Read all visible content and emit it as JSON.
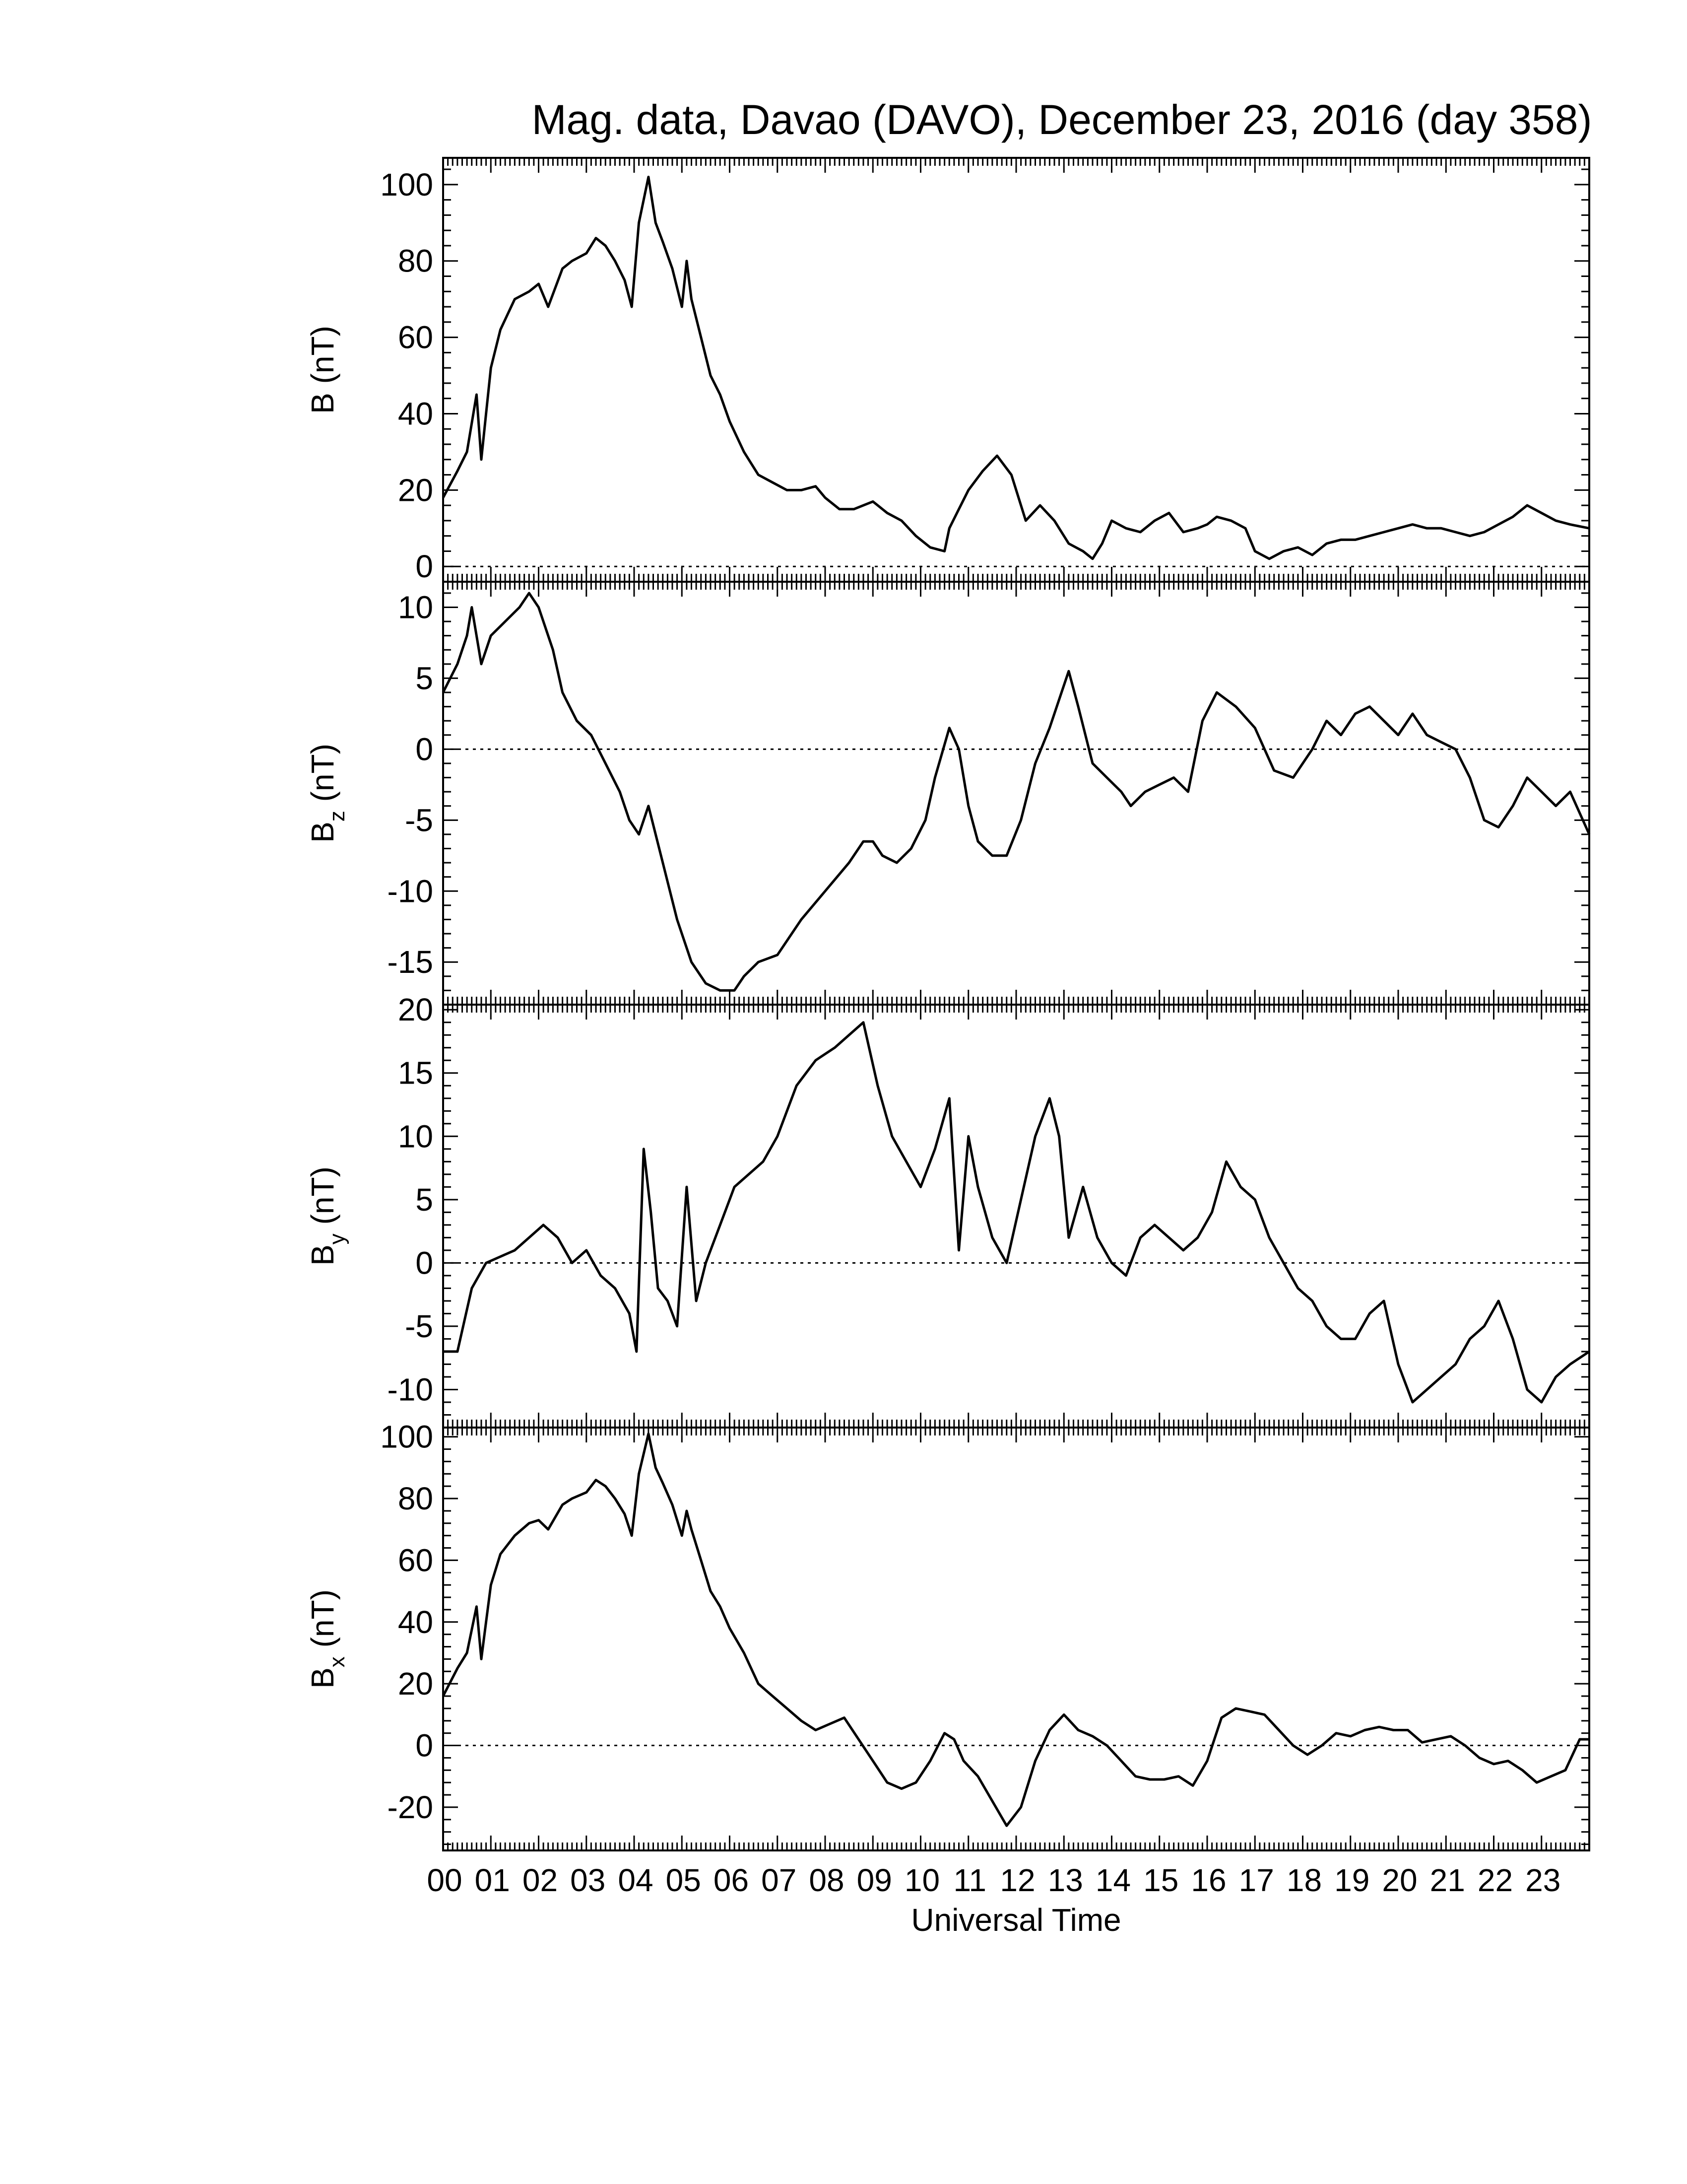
{
  "title": "Mag. data, Davao (DAVO), December 23, 2016 (day 358)",
  "chart_data": [
    {
      "type": "line",
      "panel": "B",
      "ylabel": "B (nT)",
      "ylabel_main": "B",
      "ylabel_sub": "",
      "ylabel_unit": " (nT)",
      "ylim": [
        -4,
        107
      ],
      "yticks": [
        0,
        20,
        40,
        60,
        80,
        100
      ],
      "zero_line": true,
      "x": [
        0,
        0.3,
        0.5,
        0.7,
        0.8,
        0.9,
        1.0,
        1.2,
        1.5,
        1.8,
        2.0,
        2.2,
        2.5,
        2.7,
        3.0,
        3.2,
        3.4,
        3.6,
        3.8,
        3.95,
        4.1,
        4.3,
        4.45,
        4.6,
        4.8,
        5.0,
        5.1,
        5.2,
        5.4,
        5.6,
        5.8,
        6.0,
        6.3,
        6.6,
        6.9,
        7.2,
        7.5,
        7.8,
        8.0,
        8.3,
        8.6,
        9.0,
        9.3,
        9.6,
        9.9,
        10.2,
        10.5,
        10.6,
        10.8,
        11.0,
        11.3,
        11.6,
        11.9,
        12.2,
        12.5,
        12.8,
        13.1,
        13.4,
        13.6,
        13.8,
        14.0,
        14.3,
        14.6,
        14.9,
        15.2,
        15.5,
        15.8,
        16.0,
        16.2,
        16.5,
        16.8,
        17.0,
        17.3,
        17.6,
        17.9,
        18.2,
        18.5,
        18.8,
        19.1,
        19.4,
        19.7,
        20.0,
        20.3,
        20.6,
        20.9,
        21.2,
        21.5,
        21.8,
        22.1,
        22.4,
        22.7,
        23.0,
        23.3,
        23.6,
        24.0
      ],
      "series": [
        {
          "values": [
            18,
            25,
            30,
            45,
            28,
            40,
            52,
            62,
            70,
            72,
            74,
            68,
            78,
            80,
            82,
            86,
            84,
            80,
            75,
            68,
            90,
            102,
            90,
            85,
            78,
            68,
            80,
            70,
            60,
            50,
            45,
            38,
            30,
            24,
            22,
            20,
            20,
            21,
            18,
            15,
            15,
            17,
            14,
            12,
            8,
            5,
            4,
            10,
            15,
            20,
            25,
            29,
            24,
            12,
            16,
            12,
            6,
            4,
            2,
            6,
            12,
            10,
            9,
            12,
            14,
            9,
            10,
            11,
            13,
            12,
            10,
            4,
            2,
            4,
            5,
            3,
            6,
            7,
            7,
            8,
            9,
            10,
            11,
            10,
            10,
            9,
            8,
            9,
            11,
            13,
            16,
            14,
            12,
            11,
            10
          ]
        }
      ]
    },
    {
      "type": "line",
      "panel": "Bz",
      "ylabel": "Bz (nT)",
      "ylabel_main": "B",
      "ylabel_sub": "z",
      "ylabel_unit": " (nT)",
      "ylim": [
        -18,
        11.8
      ],
      "yticks": [
        10,
        5,
        0,
        -5,
        -10,
        -15
      ],
      "zero_line": true,
      "x": [
        0,
        0.3,
        0.5,
        0.6,
        0.8,
        1.0,
        1.3,
        1.6,
        1.8,
        2.0,
        2.3,
        2.5,
        2.8,
        3.1,
        3.4,
        3.7,
        3.9,
        4.1,
        4.3,
        4.6,
        4.9,
        5.2,
        5.5,
        5.8,
        6.1,
        6.3,
        6.6,
        7.0,
        7.5,
        8.0,
        8.5,
        8.8,
        9.0,
        9.2,
        9.5,
        9.8,
        10.1,
        10.3,
        10.6,
        10.8,
        11.0,
        11.2,
        11.5,
        11.8,
        12.1,
        12.4,
        12.7,
        12.9,
        13.1,
        13.3,
        13.6,
        13.9,
        14.2,
        14.4,
        14.7,
        15.0,
        15.3,
        15.6,
        15.9,
        16.2,
        16.6,
        17.0,
        17.4,
        17.8,
        18.2,
        18.5,
        18.8,
        19.1,
        19.4,
        19.7,
        20.0,
        20.3,
        20.6,
        20.9,
        21.2,
        21.5,
        21.8,
        22.1,
        22.4,
        22.7,
        23.0,
        23.3,
        23.6,
        24.0
      ],
      "series": [
        {
          "values": [
            4,
            6,
            8,
            10,
            6,
            8,
            9,
            10,
            11,
            10,
            7,
            4,
            2,
            1,
            -1,
            -3,
            -5,
            -6,
            -4,
            -8,
            -12,
            -15,
            -16.5,
            -17,
            -17,
            -16,
            -15,
            -14.5,
            -12,
            -10,
            -8,
            -6.5,
            -6.5,
            -7.5,
            -8,
            -7,
            -5,
            -2,
            1.5,
            0,
            -4,
            -6.5,
            -7.5,
            -7.5,
            -5,
            -1,
            1.5,
            3.5,
            5.5,
            3,
            -1,
            -2,
            -3,
            -4,
            -3,
            -2.5,
            -2,
            -3,
            2,
            4,
            3,
            1.5,
            -1.5,
            -2,
            0,
            2,
            1,
            2.5,
            3,
            2,
            1,
            2.5,
            1,
            0.5,
            0,
            -2,
            -5,
            -5.5,
            -4,
            -2,
            -3,
            -4,
            -3,
            -6
          ]
        }
      ]
    },
    {
      "type": "line",
      "panel": "By",
      "ylabel": "By (nT)",
      "ylabel_main": "B",
      "ylabel_sub": "y",
      "ylabel_unit": " (nT)",
      "ylim": [
        -13,
        20.4
      ],
      "yticks": [
        20,
        15,
        10,
        5,
        0,
        -5,
        -10
      ],
      "zero_line": true,
      "x": [
        0,
        0.3,
        0.6,
        0.9,
        1.2,
        1.5,
        1.8,
        2.1,
        2.4,
        2.7,
        3.0,
        3.3,
        3.6,
        3.9,
        4.05,
        4.2,
        4.35,
        4.5,
        4.7,
        4.9,
        5.1,
        5.3,
        5.5,
        5.8,
        6.1,
        6.4,
        6.7,
        7.0,
        7.4,
        7.8,
        8.2,
        8.5,
        8.8,
        9.1,
        9.4,
        9.7,
        10.0,
        10.3,
        10.6,
        10.8,
        11.0,
        11.2,
        11.5,
        11.8,
        12.1,
        12.4,
        12.7,
        12.9,
        13.1,
        13.4,
        13.7,
        14.0,
        14.3,
        14.6,
        14.9,
        15.2,
        15.5,
        15.8,
        16.1,
        16.4,
        16.7,
        17.0,
        17.3,
        17.6,
        17.9,
        18.2,
        18.5,
        18.8,
        19.1,
        19.4,
        19.7,
        20.0,
        20.3,
        20.6,
        20.9,
        21.2,
        21.5,
        21.8,
        22.1,
        22.4,
        22.7,
        23.0,
        23.3,
        23.6,
        24.0
      ],
      "series": [
        {
          "values": [
            -7,
            -7,
            -2,
            0,
            0.5,
            1,
            2,
            3,
            2,
            0,
            1,
            -1,
            -2,
            -4,
            -7,
            9,
            4,
            -2,
            -3,
            -5,
            6,
            -3,
            0,
            3,
            6,
            7,
            8,
            10,
            14,
            16,
            17,
            18,
            19,
            14,
            10,
            8,
            6,
            9,
            13,
            1,
            10,
            6,
            2,
            0,
            5,
            10,
            13,
            10,
            2,
            6,
            2,
            0,
            -1,
            2,
            3,
            2,
            1,
            2,
            4,
            8,
            6,
            5,
            2,
            0,
            -2,
            -3,
            -5,
            -6,
            -6,
            -4,
            -3,
            -8,
            -11,
            -10,
            -9,
            -8,
            -6,
            -5,
            -3,
            -6,
            -10,
            -11,
            -9,
            -8,
            -7
          ]
        }
      ]
    },
    {
      "type": "line",
      "panel": "Bx",
      "ylabel": "Bx (nT)",
      "ylabel_main": "B",
      "ylabel_sub": "x",
      "ylabel_unit": " (nT)",
      "ylim": [
        -34,
        103
      ],
      "yticks": [
        100,
        80,
        60,
        40,
        20,
        0,
        -20
      ],
      "zero_line": true,
      "x": [
        0,
        0.3,
        0.5,
        0.7,
        0.8,
        0.9,
        1.0,
        1.2,
        1.5,
        1.8,
        2.0,
        2.2,
        2.5,
        2.7,
        3.0,
        3.2,
        3.4,
        3.6,
        3.8,
        3.95,
        4.1,
        4.3,
        4.45,
        4.6,
        4.8,
        5.0,
        5.1,
        5.2,
        5.4,
        5.6,
        5.8,
        6.0,
        6.3,
        6.6,
        6.9,
        7.2,
        7.5,
        7.8,
        8.1,
        8.4,
        8.7,
        9.0,
        9.3,
        9.6,
        9.9,
        10.2,
        10.5,
        10.7,
        10.9,
        11.2,
        11.5,
        11.8,
        12.1,
        12.4,
        12.7,
        13.0,
        13.3,
        13.6,
        13.9,
        14.2,
        14.5,
        14.8,
        15.1,
        15.4,
        15.7,
        16.0,
        16.3,
        16.6,
        16.9,
        17.2,
        17.5,
        17.8,
        18.1,
        18.4,
        18.7,
        19.0,
        19.3,
        19.6,
        19.9,
        20.2,
        20.5,
        20.8,
        21.1,
        21.4,
        21.7,
        22.0,
        22.3,
        22.6,
        22.9,
        23.2,
        23.5,
        23.8,
        24.0
      ],
      "series": [
        {
          "values": [
            16,
            25,
            30,
            45,
            28,
            40,
            52,
            62,
            68,
            72,
            73,
            70,
            78,
            80,
            82,
            86,
            84,
            80,
            75,
            68,
            88,
            101,
            90,
            85,
            78,
            68,
            76,
            70,
            60,
            50,
            45,
            38,
            30,
            20,
            16,
            12,
            8,
            5,
            7,
            9,
            2,
            -5,
            -12,
            -14,
            -12,
            -5,
            4,
            2,
            -5,
            -10,
            -18,
            -26,
            -20,
            -5,
            5,
            10,
            5,
            3,
            0,
            -5,
            -10,
            -11,
            -11,
            -10,
            -13,
            -5,
            9,
            12,
            11,
            10,
            5,
            0,
            -3,
            0,
            4,
            3,
            5,
            6,
            5,
            5,
            1,
            2,
            3,
            0,
            -4,
            -6,
            -5,
            -8,
            -12,
            -10,
            -8,
            2,
            2
          ]
        }
      ]
    }
  ],
  "x_axis": {
    "label": "Universal Time",
    "range": [
      0,
      24
    ],
    "tick_labels": [
      "00",
      "01",
      "02",
      "03",
      "04",
      "05",
      "06",
      "07",
      "08",
      "09",
      "10",
      "11",
      "12",
      "13",
      "14",
      "15",
      "16",
      "17",
      "18",
      "19",
      "20",
      "21",
      "22",
      "23"
    ]
  }
}
